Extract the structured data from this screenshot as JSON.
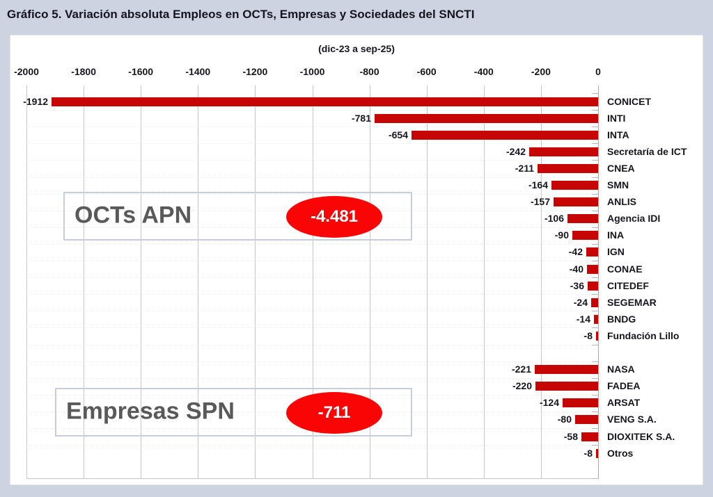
{
  "page": {
    "title": "Gráfico 5. Variación absoluta Empleos en OCTs, Empresas y Sociedades del SNCTI"
  },
  "chart_data": {
    "type": "bar",
    "orientation": "horizontal",
    "title": "Gráfico 5. Variación absoluta Empleos en OCTs, Empresas y Sociedades del SNCTI",
    "subtitle": "(dic-23 a sep-25)",
    "xlabel": "",
    "ylabel": "",
    "xlim": [
      -2000,
      0
    ],
    "x_ticks": [
      -2000,
      -1800,
      -1600,
      -1400,
      -1200,
      -1000,
      -800,
      -600,
      -400,
      -200,
      0
    ],
    "grid": true,
    "legend": false,
    "bar_color": "#c60505",
    "gridline_color": "#c6c6ce",
    "zero_axis_color": "#a8a8b0",
    "badge_color": "#fa0505",
    "groups": [
      {
        "label": "OCTs APN",
        "total": -4481,
        "total_label": "-4.481",
        "items": [
          {
            "name": "CONICET",
            "value": -1912,
            "label": "-1912"
          },
          {
            "name": "INTI",
            "value": -781,
            "label": "-781"
          },
          {
            "name": "INTA",
            "value": -654,
            "label": "-654"
          },
          {
            "name": "Secretaría de ICT",
            "value": -242,
            "label": "-242"
          },
          {
            "name": "CNEA",
            "value": -211,
            "label": "-211"
          },
          {
            "name": "SMN",
            "value": -164,
            "label": "-164"
          },
          {
            "name": "ANLIS",
            "value": -157,
            "label": "-157"
          },
          {
            "name": "Agencia IDI",
            "value": -106,
            "label": "-106"
          },
          {
            "name": "INA",
            "value": -90,
            "label": "-90"
          },
          {
            "name": "IGN",
            "value": -42,
            "label": "-42"
          },
          {
            "name": "CONAE",
            "value": -40,
            "label": "-40"
          },
          {
            "name": "CITEDEF",
            "value": -36,
            "label": "-36"
          },
          {
            "name": "SEGEMAR",
            "value": -24,
            "label": "-24"
          },
          {
            "name": "BNDG",
            "value": -14,
            "label": "-14"
          },
          {
            "name": "Fundación Lillo",
            "value": -8,
            "label": "-8"
          }
        ]
      },
      {
        "label": "Empresas SPN",
        "total": -711,
        "total_label": "-711",
        "items": [
          {
            "name": "NASA",
            "value": -221,
            "label": "-221"
          },
          {
            "name": "FADEA",
            "value": -220,
            "label": "-220"
          },
          {
            "name": "ARSAT",
            "value": -124,
            "label": "-124"
          },
          {
            "name": "VENG S.A.",
            "value": -80,
            "label": "-80"
          },
          {
            "name": "DIOXITEK S.A.",
            "value": -58,
            "label": "-58"
          },
          {
            "name": "Otros",
            "value": -8,
            "label": "-8"
          }
        ]
      }
    ]
  }
}
